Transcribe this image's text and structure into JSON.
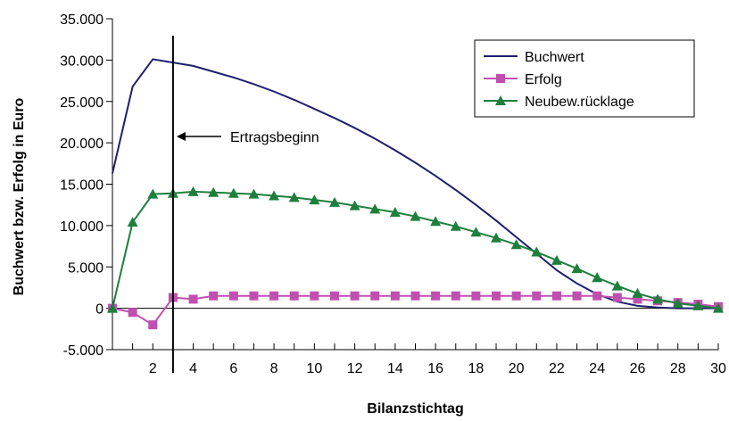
{
  "chart_data": {
    "type": "line",
    "title": "",
    "xlabel": "Bilanzstichtag",
    "ylabel": "Buchwert bzw. Erfolg in Euro",
    "xlim": [
      0,
      30
    ],
    "ylim": [
      -5000,
      35000
    ],
    "x_ticks": [
      2,
      4,
      6,
      8,
      10,
      12,
      14,
      16,
      18,
      20,
      22,
      24,
      26,
      28,
      30
    ],
    "x_tick_labels": [
      "2",
      "4",
      "6",
      "8",
      "10",
      "12",
      "14",
      "16",
      "18",
      "20",
      "22",
      "24",
      "26",
      "28",
      "30"
    ],
    "y_ticks": [
      -5000,
      0,
      5000,
      10000,
      15000,
      20000,
      25000,
      30000,
      35000
    ],
    "y_tick_labels": [
      "-5.000",
      "0",
      "5.000",
      "10.000",
      "15.000",
      "20.000",
      "25.000",
      "30.000",
      "35.000"
    ],
    "grid": false,
    "legend_position": "top-right",
    "series": [
      {
        "name": "Buchwert",
        "color": "#1f1f6e",
        "marker": "none",
        "x": [
          0,
          1,
          2,
          3,
          4,
          5,
          6,
          7,
          8,
          9,
          10,
          11,
          12,
          13,
          14,
          15,
          16,
          17,
          18,
          19,
          20,
          21,
          22,
          23,
          24,
          25,
          26,
          27,
          28,
          29,
          30
        ],
        "values": [
          16300,
          26800,
          30100,
          29700,
          29300,
          28600,
          27900,
          27100,
          26200,
          25200,
          24100,
          23000,
          21800,
          20500,
          19100,
          17600,
          16000,
          14300,
          12500,
          10600,
          8600,
          6600,
          4600,
          3000,
          1700,
          800,
          300,
          100,
          0,
          0,
          0
        ]
      },
      {
        "name": "Erfolg",
        "color": "#c050b0",
        "marker": "square",
        "x": [
          0,
          1,
          2,
          3,
          4,
          5,
          6,
          7,
          8,
          9,
          10,
          11,
          12,
          13,
          14,
          15,
          16,
          17,
          18,
          19,
          20,
          21,
          22,
          23,
          24,
          25,
          26,
          27,
          28,
          29,
          30
        ],
        "values": [
          0,
          -500,
          -2000,
          1300,
          1100,
          1500,
          1500,
          1500,
          1500,
          1500,
          1500,
          1500,
          1500,
          1500,
          1500,
          1500,
          1500,
          1500,
          1500,
          1500,
          1500,
          1500,
          1500,
          1500,
          1500,
          1300,
          1100,
          900,
          700,
          500,
          200
        ]
      },
      {
        "name": "Neubew.rücklage",
        "color": "#1e7f3c",
        "marker": "triangle",
        "x": [
          0,
          1,
          2,
          3,
          4,
          5,
          6,
          7,
          8,
          9,
          10,
          11,
          12,
          13,
          14,
          15,
          16,
          17,
          18,
          19,
          20,
          21,
          22,
          23,
          24,
          25,
          26,
          27,
          28,
          29,
          30
        ],
        "values": [
          0,
          10400,
          13800,
          13900,
          14100,
          14000,
          13900,
          13800,
          13600,
          13400,
          13100,
          12800,
          12400,
          12000,
          11600,
          11100,
          10500,
          9900,
          9200,
          8500,
          7700,
          6800,
          5800,
          4800,
          3700,
          2700,
          1800,
          1100,
          600,
          300,
          0
        ]
      }
    ],
    "annotations": [
      {
        "text": "Ertragsbeginn",
        "x": 3,
        "type": "vertical-line-with-arrow"
      }
    ]
  }
}
